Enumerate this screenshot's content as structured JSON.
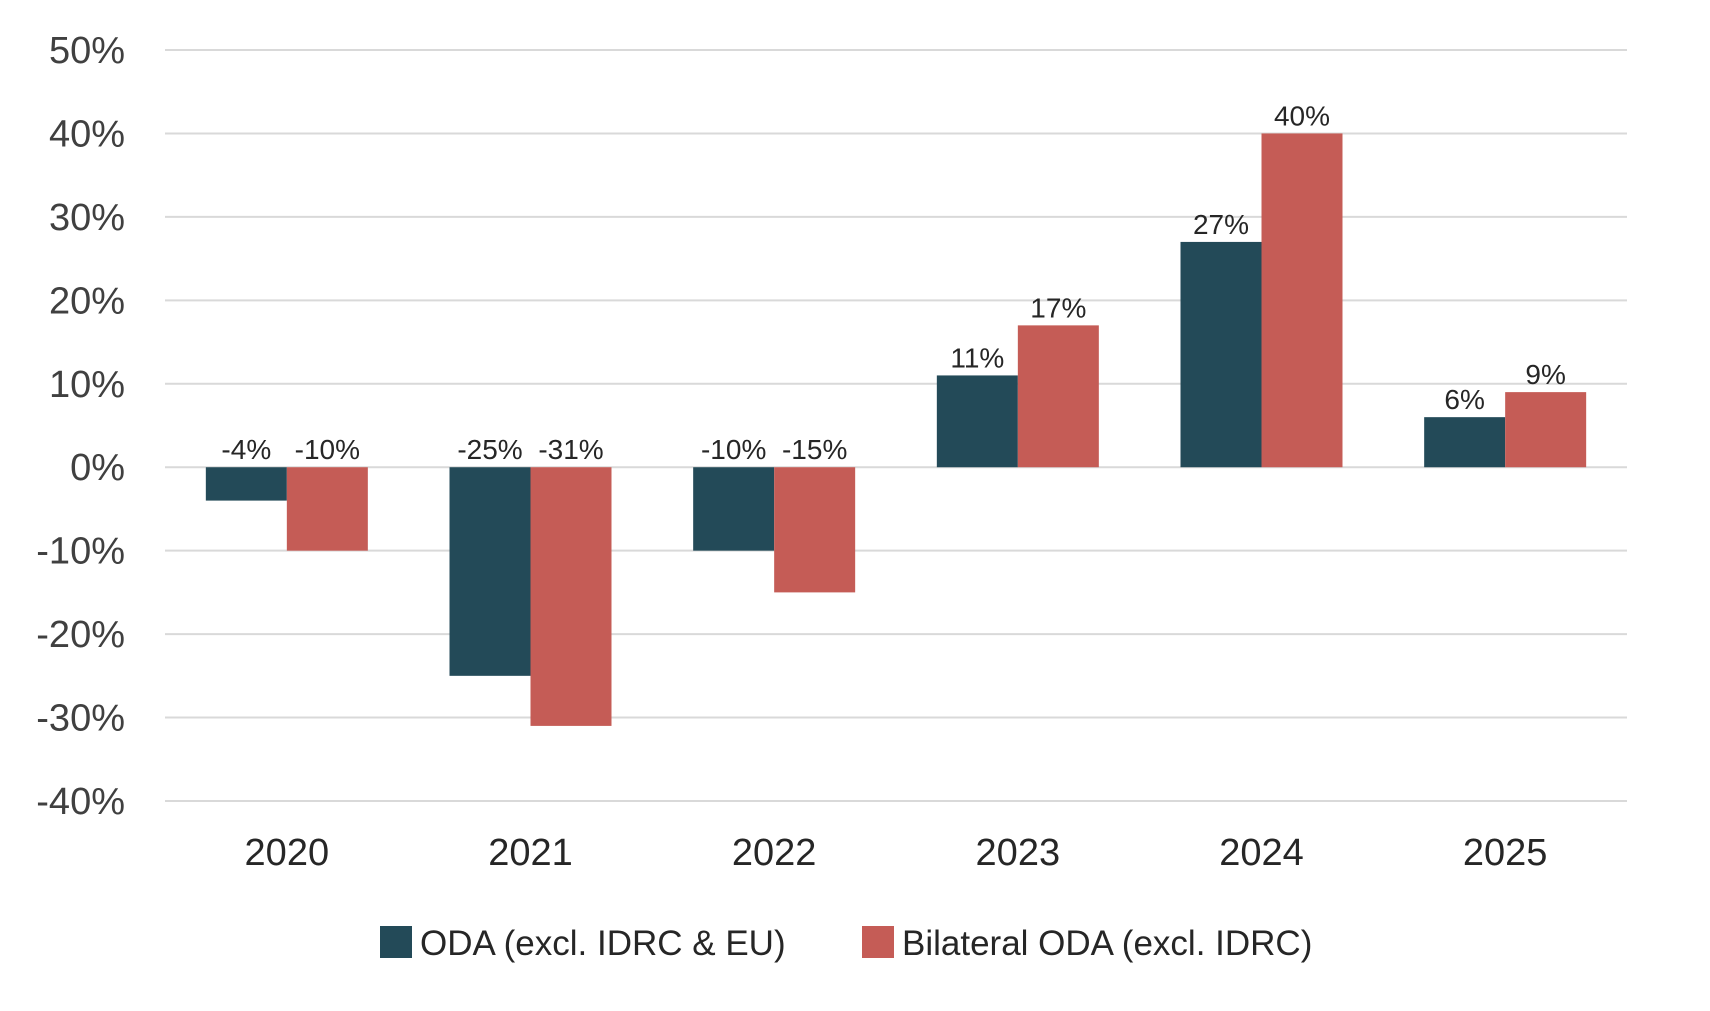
{
  "chart_data": {
    "type": "bar",
    "title": "",
    "xlabel": "",
    "ylabel": "",
    "categories": [
      "2020",
      "2021",
      "2022",
      "2023",
      "2024",
      "2025"
    ],
    "series": [
      {
        "name": "ODA (excl. IDRC & EU)",
        "color": "#234a58",
        "values": [
          -4,
          -25,
          -10,
          11,
          27,
          6
        ],
        "labels": [
          "-4%",
          "-25%",
          "-10%",
          "11%",
          "27%",
          "6%"
        ]
      },
      {
        "name": "Bilateral ODA (excl. IDRC)",
        "color": "#c55c56",
        "values": [
          -10,
          -31,
          -15,
          17,
          40,
          9
        ],
        "labels": [
          "-10%",
          "-31%",
          "-15%",
          "17%",
          "40%",
          "9%"
        ]
      }
    ],
    "ylim": [
      -40,
      50
    ],
    "yticks": [
      50,
      40,
      30,
      20,
      10,
      0,
      -10,
      -20,
      -30,
      -40
    ],
    "ytick_labels": [
      "50%",
      "40%",
      "30%",
      "20%",
      "10%",
      "0%",
      "-10%",
      "-20%",
      "-30%",
      "-40%"
    ],
    "grid": true,
    "legend_position": "bottom"
  }
}
